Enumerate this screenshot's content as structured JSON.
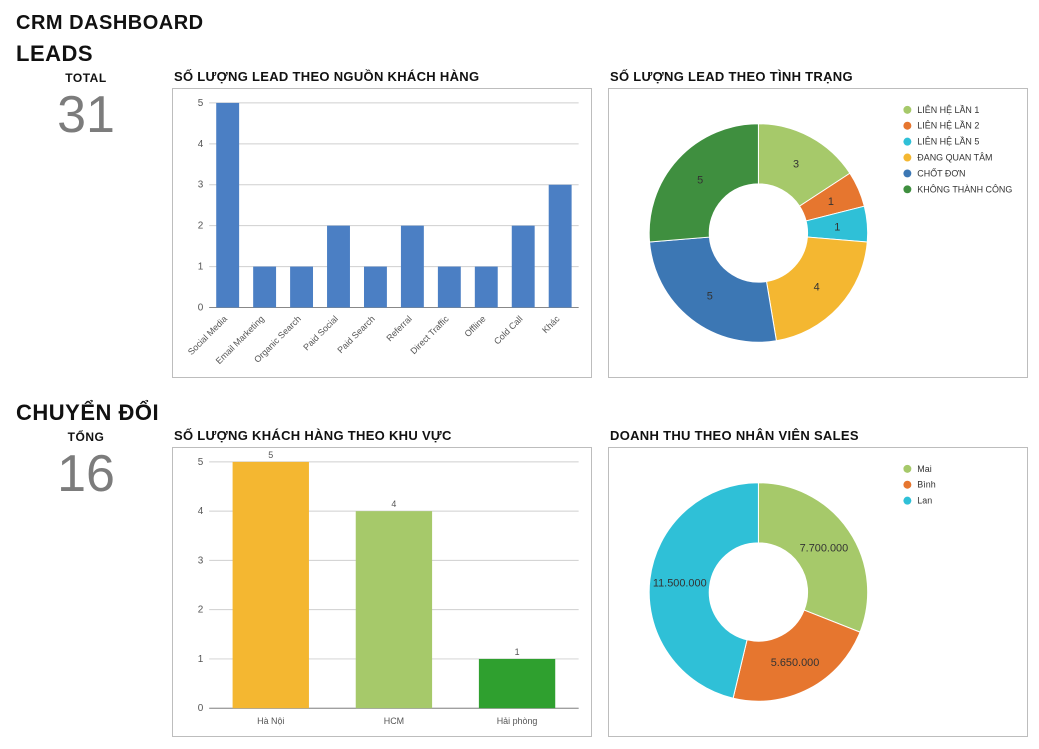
{
  "page": {
    "title": "CRM DASHBOARD"
  },
  "leads": {
    "section_title": "LEADS",
    "stat_label": "TOTAL",
    "stat_value": "31",
    "bar_chart": {
      "title": "SỐ LƯỢNG LEAD THEO NGUỒN KHÁCH HÀNG",
      "type": "bar",
      "categories": [
        "Social Media",
        "Email Marketing",
        "Organic Search",
        "Paid Social",
        "Paid Search",
        "Referral",
        "Direct Traffic",
        "Offline",
        "Cold Call",
        "Khác"
      ],
      "values": [
        5,
        1,
        1,
        2,
        1,
        2,
        1,
        1,
        2,
        3
      ],
      "bar_color": "#4b7fc4",
      "ylim": [
        0,
        5
      ],
      "ytick_step": 1,
      "grid_color": "#cfcfcf",
      "background_color": "#ffffff",
      "label_fontsize": 9,
      "label_rotation": -45
    },
    "donut_chart": {
      "title": "SỐ LƯỢNG LEAD THEO TÌNH TRẠNG",
      "type": "donut",
      "items": [
        {
          "label": "LIÊN HỆ LẦN 1",
          "value": 3,
          "color": "#a6c96a"
        },
        {
          "label": "LIÊN HỆ LẦN 2",
          "value": 1,
          "color": "#e6762f"
        },
        {
          "label": "LIÊN HỆ LẦN 5",
          "value": 1,
          "color": "#2fc0d7"
        },
        {
          "label": "ĐANG QUAN TÂM",
          "value": 4,
          "color": "#f4b731"
        },
        {
          "label": "CHỐT ĐƠN",
          "value": 5,
          "color": "#3c77b4"
        },
        {
          "label": "KHÔNG THÀNH CÔNG",
          "value": 5,
          "color": "#3f8f3f"
        }
      ],
      "inner_ratio": 0.45,
      "background_color": "#ffffff",
      "legend_fontsize": 9,
      "slice_label_fontsize": 11
    }
  },
  "convert": {
    "section_title": "CHUYỂN ĐỔI",
    "stat_label": "TỔNG",
    "stat_value": "16",
    "bar_chart": {
      "title": "SỐ LƯỢNG KHÁCH HÀNG THEO KHU VỰC",
      "type": "bar",
      "categories": [
        "Hà Nội",
        "HCM",
        "Hải phòng"
      ],
      "values": [
        5,
        4,
        1
      ],
      "bar_colors": [
        "#f4b731",
        "#a6c96a",
        "#2fa02f"
      ],
      "ylim": [
        0,
        5
      ],
      "ytick_step": 1,
      "grid_color": "#cfcfcf",
      "background_color": "#ffffff",
      "label_fontsize": 9,
      "show_value_labels": true
    },
    "donut_chart": {
      "title": "DOANH THU THEO NHÂN VIÊN SALES",
      "type": "donut",
      "items": [
        {
          "label": "Mai",
          "value": 7700000,
          "display": "7.700.000",
          "color": "#a6c96a"
        },
        {
          "label": "Bình",
          "value": 5650000,
          "display": "5.650.000",
          "color": "#e6762f"
        },
        {
          "label": "Lan",
          "value": 11500000,
          "display": "11.500.000",
          "color": "#2fc0d7"
        }
      ],
      "inner_ratio": 0.45,
      "background_color": "#ffffff",
      "legend_fontsize": 9,
      "slice_label_fontsize": 11
    }
  }
}
